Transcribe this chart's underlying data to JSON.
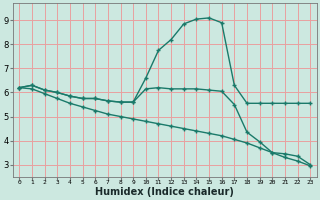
{
  "background_color": "#cce8e0",
  "grid_color": "#e8a0a0",
  "line_color": "#1a7a6a",
  "xlabel": "Humidex (Indice chaleur)",
  "xlabel_fontsize": 7,
  "xlim": [
    -0.5,
    23.5
  ],
  "ylim": [
    2.5,
    9.7
  ],
  "xtick_labels": [
    "0",
    "1",
    "2",
    "3",
    "4",
    "5",
    "6",
    "7",
    "8",
    "9",
    "10",
    "11",
    "12",
    "13",
    "14",
    "15",
    "16",
    "17",
    "18",
    "19",
    "20",
    "21",
    "22",
    "23"
  ],
  "yticks": [
    3,
    4,
    5,
    6,
    7,
    8,
    9
  ],
  "curve1_x": [
    0,
    1,
    2,
    3,
    4,
    5,
    6,
    7,
    8,
    9,
    10,
    11,
    12,
    13,
    14,
    15,
    16,
    17,
    18,
    19,
    20,
    21,
    22,
    23
  ],
  "curve1_y": [
    6.2,
    6.3,
    6.1,
    6.0,
    5.85,
    5.75,
    5.75,
    5.65,
    5.6,
    5.6,
    6.6,
    7.75,
    8.2,
    8.85,
    9.05,
    9.1,
    8.9,
    6.3,
    5.55,
    5.55,
    5.55,
    5.55,
    5.55,
    5.55
  ],
  "curve2_x": [
    0,
    1,
    2,
    3,
    4,
    5,
    6,
    7,
    8,
    9,
    10,
    11,
    12,
    13,
    14,
    15,
    16,
    17,
    18,
    19,
    20,
    21,
    22,
    23
  ],
  "curve2_y": [
    6.2,
    6.3,
    6.1,
    6.0,
    5.85,
    5.75,
    5.75,
    5.65,
    5.6,
    5.6,
    6.15,
    6.2,
    6.15,
    6.15,
    6.15,
    6.1,
    6.05,
    5.5,
    4.35,
    3.95,
    3.5,
    3.45,
    3.35,
    3.0
  ],
  "curve3_x": [
    0,
    1,
    2,
    3,
    4,
    5,
    6,
    7,
    8,
    9,
    10,
    11,
    12,
    13,
    14,
    15,
    16,
    17,
    18,
    19,
    20,
    21,
    22,
    23
  ],
  "curve3_y": [
    6.2,
    6.15,
    5.95,
    5.75,
    5.55,
    5.4,
    5.25,
    5.1,
    5.0,
    4.9,
    4.8,
    4.7,
    4.6,
    4.5,
    4.4,
    4.3,
    4.2,
    4.05,
    3.9,
    3.7,
    3.5,
    3.3,
    3.15,
    2.95
  ]
}
